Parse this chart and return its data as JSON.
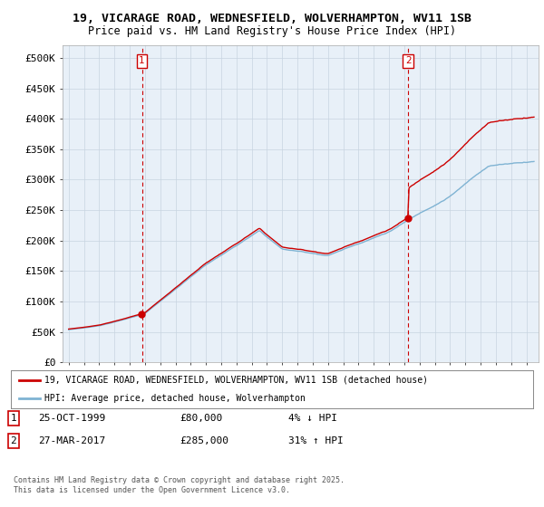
{
  "title_line1": "19, VICARAGE ROAD, WEDNESFIELD, WOLVERHAMPTON, WV11 1SB",
  "title_line2": "Price paid vs. HM Land Registry's House Price Index (HPI)",
  "ylabel_ticks": [
    "£0",
    "£50K",
    "£100K",
    "£150K",
    "£200K",
    "£250K",
    "£300K",
    "£350K",
    "£400K",
    "£450K",
    "£500K"
  ],
  "ytick_values": [
    0,
    50000,
    100000,
    150000,
    200000,
    250000,
    300000,
    350000,
    400000,
    450000,
    500000
  ],
  "hpi_color": "#7fb3d3",
  "price_color": "#cc0000",
  "vline_color": "#cc0000",
  "sale1_x": 1999.8,
  "sale2_x": 2017.25,
  "sale1_price": 80000,
  "sale2_price": 285000,
  "sale1_date": "25-OCT-1999",
  "sale2_date": "27-MAR-2017",
  "sale1_pct": "4% ↓ HPI",
  "sale2_pct": "31% ↑ HPI",
  "legend_label1": "19, VICARAGE ROAD, WEDNESFIELD, WOLVERHAMPTON, WV11 1SB (detached house)",
  "legend_label2": "HPI: Average price, detached house, Wolverhampton",
  "footer_line1": "Contains HM Land Registry data © Crown copyright and database right 2025.",
  "footer_line2": "This data is licensed under the Open Government Licence v3.0.",
  "bg_color": "#ffffff",
  "plot_bg_color": "#e8f0f8",
  "grid_color": "#c8d4e0"
}
